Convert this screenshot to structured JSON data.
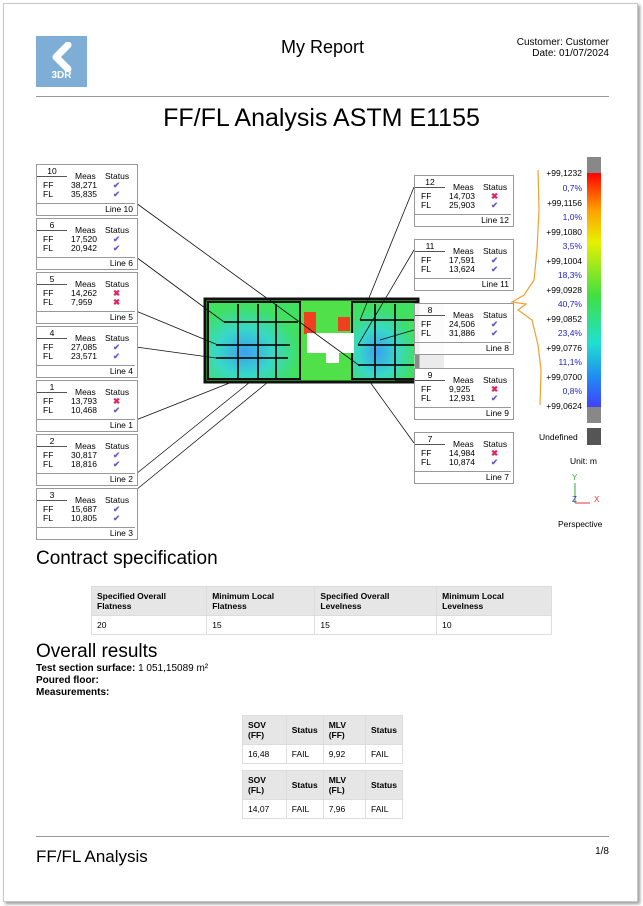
{
  "header": {
    "logo_text": "3DR",
    "title": "My Report",
    "customer": "Customer: Customer",
    "date": "Date: 01/07/2024"
  },
  "main_title": "FF/FL Analysis ASTM E1155",
  "callouts_left": [
    {
      "num": "10",
      "ff": "38,271",
      "fl": "35,835",
      "ff_status": "pass",
      "fl_status": "pass",
      "line": "Line 10"
    },
    {
      "num": "6",
      "ff": "17,520",
      "fl": "20,942",
      "ff_status": "pass",
      "fl_status": "pass",
      "line": "Line 6"
    },
    {
      "num": "5",
      "ff": "14,262",
      "fl": "7,959",
      "ff_status": "fail",
      "fl_status": "fail",
      "line": "Line 5"
    },
    {
      "num": "4",
      "ff": "27,085",
      "fl": "23,571",
      "ff_status": "pass",
      "fl_status": "pass",
      "line": "Line 4"
    },
    {
      "num": "1",
      "ff": "13,793",
      "fl": "10,468",
      "ff_status": "fail",
      "fl_status": "pass",
      "line": "Line 1"
    },
    {
      "num": "2",
      "ff": "30,817",
      "fl": "18,816",
      "ff_status": "pass",
      "fl_status": "pass",
      "line": "Line 2"
    },
    {
      "num": "3",
      "ff": "15,687",
      "fl": "10,805",
      "ff_status": "pass",
      "fl_status": "pass",
      "line": "Line 3"
    }
  ],
  "callouts_right": [
    {
      "num": "12",
      "ff": "14,703",
      "fl": "25,903",
      "ff_status": "fail",
      "fl_status": "pass",
      "line": "Line 12"
    },
    {
      "num": "11",
      "ff": "17,591",
      "fl": "13,624",
      "ff_status": "pass",
      "fl_status": "pass",
      "line": "Line 11"
    },
    {
      "num": "8",
      "ff": "24,506",
      "fl": "31,886",
      "ff_status": "pass",
      "fl_status": "pass",
      "line": "Line 8"
    },
    {
      "num": "9",
      "ff": "9,925",
      "fl": "12,931",
      "ff_status": "fail",
      "fl_status": "pass",
      "line": "Line 9"
    },
    {
      "num": "7",
      "ff": "14,984",
      "fl": "10,874",
      "ff_status": "fail",
      "fl_status": "pass",
      "line": "Line 7"
    }
  ],
  "callout_labels": {
    "meas": "Meas",
    "status": "Status",
    "ff": "FF",
    "fl": "FL",
    "pass_icon": "✔",
    "fail_icon": "✖"
  },
  "scale": {
    "values": [
      "+99,1232",
      "+99,1156",
      "+99,1080",
      "+99,1004",
      "+99,0928",
      "+99,0852",
      "+99,0776",
      "+99,0700",
      "+99,0624"
    ],
    "percents": [
      "0,7%",
      "1,0%",
      "3,5%",
      "18,3%",
      "40,7%",
      "23,4%",
      "11,1%",
      "0,8%"
    ],
    "undefined": "Undefined",
    "unit": "Unit: m",
    "axis_y": "Y",
    "axis_z": "Z",
    "axis_x": "X",
    "view": "Perspective"
  },
  "contract": {
    "title": "Contract specification",
    "headers": [
      "Specified Overall Flatness",
      "Minimum Local Flatness",
      "Specified Overall Levelness",
      "Minimum Local Levelness"
    ],
    "values": [
      "20",
      "15",
      "15",
      "10"
    ]
  },
  "overall": {
    "title": "Overall results",
    "surface_label": "Test section surface:",
    "surface_value": " 1 051,15089 m²",
    "poured": "Poured floor:",
    "measurements": "Measurements:",
    "ff_table": {
      "headers": [
        "SOV (FF)",
        "Status",
        "MLV (FF)",
        "Status"
      ],
      "values": [
        "16,48",
        "FAIL",
        "9,92",
        "FAIL"
      ]
    },
    "fl_table": {
      "headers": [
        "SOV (FL)",
        "Status",
        "MLV (FL)",
        "Status"
      ],
      "values": [
        "14,07",
        "FAIL",
        "7,96",
        "FAIL"
      ]
    }
  },
  "footer": {
    "title": "FF/FL Analysis",
    "page": "1/8"
  }
}
